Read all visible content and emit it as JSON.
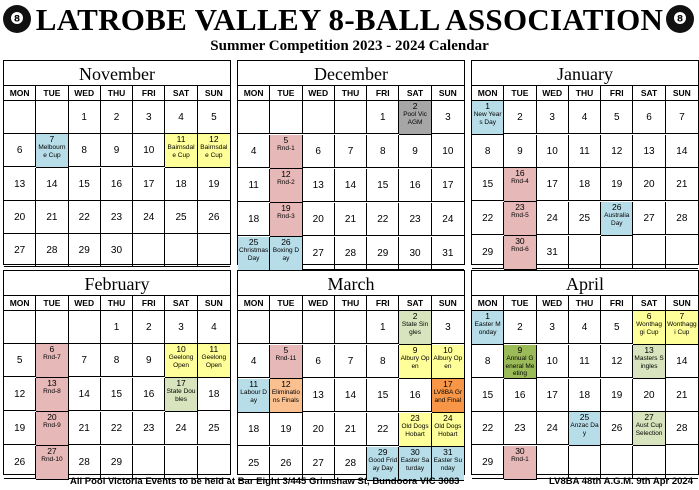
{
  "header": {
    "title": "LATROBE VALLEY 8-BALL ASSOCIATION",
    "subtitle": "Summer Competition 2023 - 2024 Calendar"
  },
  "days": [
    "MON",
    "TUE",
    "WED",
    "THU",
    "FRI",
    "SAT",
    "SUN"
  ],
  "months": [
    {
      "name": "November",
      "weeks": [
        [
          null,
          null,
          1,
          2,
          3,
          4,
          5
        ],
        [
          6,
          {
            "day": 7,
            "note": "Melbourne Cup",
            "color": "#b7dde8"
          },
          8,
          9,
          10,
          {
            "day": 11,
            "note": "Bairnsdale Cup",
            "color": "#ffff99"
          },
          {
            "day": 12,
            "note": "Bairnsdale Cup",
            "color": "#ffff99"
          }
        ],
        [
          13,
          14,
          15,
          16,
          17,
          18,
          19
        ],
        [
          20,
          21,
          22,
          23,
          24,
          25,
          26
        ],
        [
          27,
          28,
          29,
          30,
          null,
          null,
          null
        ]
      ]
    },
    {
      "name": "December",
      "weeks": [
        [
          null,
          null,
          null,
          null,
          1,
          {
            "day": 2,
            "note": "Pool Vic AGM",
            "color": "#a6a6a6"
          },
          3
        ],
        [
          4,
          {
            "day": 5,
            "note": "Rnd-1",
            "color": "#e6b8b7"
          },
          6,
          7,
          8,
          9,
          10
        ],
        [
          11,
          {
            "day": 12,
            "note": "Rnd-2",
            "color": "#e6b8b7"
          },
          13,
          14,
          15,
          16,
          17
        ],
        [
          18,
          {
            "day": 19,
            "note": "Rnd-3",
            "color": "#e6b8b7"
          },
          20,
          21,
          22,
          23,
          24
        ],
        [
          {
            "day": 25,
            "note": "Christmas Day",
            "color": "#b7dde8"
          },
          {
            "day": 26,
            "note": "Boxing Day",
            "color": "#b7dde8"
          },
          27,
          28,
          29,
          30,
          31
        ]
      ]
    },
    {
      "name": "January",
      "weeks": [
        [
          {
            "day": 1,
            "note": "New Years Day",
            "color": "#b7dde8"
          },
          2,
          3,
          4,
          5,
          6,
          7
        ],
        [
          8,
          9,
          10,
          11,
          12,
          13,
          14
        ],
        [
          15,
          {
            "day": 16,
            "note": "Rnd-4",
            "color": "#e6b8b7"
          },
          17,
          18,
          19,
          20,
          21
        ],
        [
          22,
          {
            "day": 23,
            "note": "Rnd-5",
            "color": "#e6b8b7"
          },
          24,
          25,
          {
            "day": 26,
            "note": "Australia Day",
            "color": "#b7dde8"
          },
          27,
          28
        ],
        [
          29,
          {
            "day": 30,
            "note": "Rnd-6",
            "color": "#e6b8b7"
          },
          31,
          null,
          null,
          null,
          null
        ]
      ]
    },
    {
      "name": "February",
      "weeks": [
        [
          null,
          null,
          null,
          1,
          2,
          3,
          4
        ],
        [
          5,
          {
            "day": 6,
            "note": "Rnd-7",
            "color": "#e6b8b7"
          },
          7,
          8,
          9,
          {
            "day": 10,
            "note": "Geelong Open",
            "color": "#ffff99"
          },
          {
            "day": 11,
            "note": "Geelong Open",
            "color": "#ffff99"
          }
        ],
        [
          12,
          {
            "day": 13,
            "note": "Rnd-8",
            "color": "#e6b8b7"
          },
          14,
          15,
          16,
          {
            "day": 17,
            "note": "State Doubles",
            "color": "#d7e4bd"
          },
          18
        ],
        [
          19,
          {
            "day": 20,
            "note": "Rnd-9",
            "color": "#e6b8b7"
          },
          21,
          22,
          23,
          24,
          25
        ],
        [
          26,
          {
            "day": 27,
            "note": "Rnd-10",
            "color": "#e6b8b7"
          },
          28,
          29,
          null,
          null,
          null
        ]
      ]
    },
    {
      "name": "March",
      "weeks": [
        [
          null,
          null,
          null,
          null,
          1,
          {
            "day": 2,
            "note": "State Singles",
            "color": "#d7e4bd"
          },
          3
        ],
        [
          4,
          {
            "day": 5,
            "note": "Rnd-11",
            "color": "#e6b8b7"
          },
          6,
          7,
          8,
          {
            "day": 9,
            "note": "Albury Open",
            "color": "#ffff99"
          },
          {
            "day": 10,
            "note": "Albury Open",
            "color": "#ffff99"
          }
        ],
        [
          {
            "day": 11,
            "note": "Labour Day",
            "color": "#b7dde8"
          },
          {
            "day": 12,
            "note": "Eliminations Finals",
            "color": "#fac090"
          },
          13,
          14,
          15,
          16,
          {
            "day": 17,
            "note": "LV8BA Grand Final",
            "color": "#f79646"
          }
        ],
        [
          18,
          19,
          20,
          21,
          22,
          {
            "day": 23,
            "note": "Old Dogs Hobart",
            "color": "#ffff99"
          },
          {
            "day": 24,
            "note": "Old Dogs Hobart",
            "color": "#ffff99"
          }
        ],
        [
          25,
          26,
          27,
          28,
          {
            "day": 29,
            "note": "Good Friday Day",
            "color": "#b7dde8"
          },
          {
            "day": 30,
            "note": "Easter Saturday",
            "color": "#b7dde8"
          },
          {
            "day": 31,
            "note": "Easter Sunday",
            "color": "#b7dde8"
          }
        ]
      ]
    },
    {
      "name": "April",
      "weeks": [
        [
          {
            "day": 1,
            "note": "Easter Monday",
            "color": "#b7dde8"
          },
          2,
          3,
          4,
          5,
          {
            "day": 6,
            "note": "Wonthaggi Cup",
            "color": "#ffff99"
          },
          {
            "day": 7,
            "note": "Wonthaggi Cup",
            "color": "#ffff99"
          }
        ],
        [
          8,
          {
            "day": 9,
            "note": "Annual General Meeting",
            "color": "#9bbb59"
          },
          10,
          11,
          12,
          {
            "day": 13,
            "note": "Masters Singles",
            "color": "#d7e4bd"
          },
          14
        ],
        [
          15,
          16,
          17,
          18,
          19,
          20,
          21
        ],
        [
          22,
          23,
          24,
          {
            "day": 25,
            "note": "Anzac Day",
            "color": "#b7dde8"
          },
          26,
          {
            "day": 27,
            "note": "Aust Cup Selection",
            "color": "#d7e4bd"
          },
          28
        ],
        [
          29,
          {
            "day": 30,
            "note": "Rnd-1",
            "color": "#e6b8b7"
          },
          null,
          null,
          null,
          null,
          null
        ]
      ]
    }
  ],
  "footer": {
    "venue": "All Pool Victoria Events to be held at Bar Eight 3/445 Grimshaw St, Bundoora VIC 3083",
    "agm": "LV8BA 48th A.G.M. 9th Apr 2024"
  }
}
